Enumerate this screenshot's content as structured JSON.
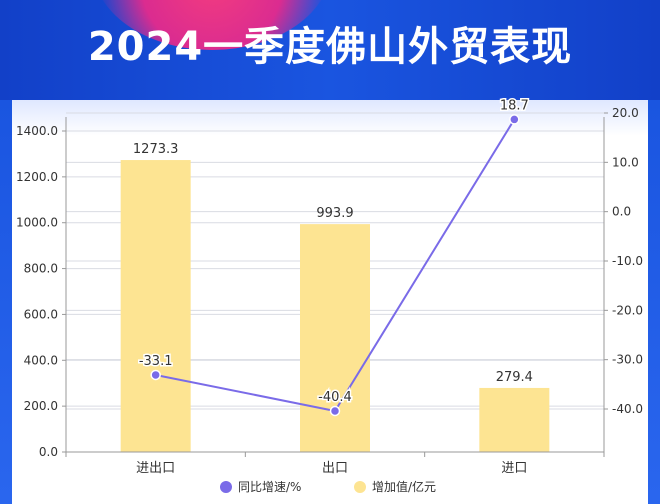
{
  "header": {
    "title": "2024一季度佛山外贸表现"
  },
  "colors": {
    "banner": "#1a55e0",
    "bar": "#fde492",
    "line": "#7a6be8",
    "grid": "#d9dbe3",
    "text": "#333333"
  },
  "chart_data": {
    "type": "bar+line",
    "categories": [
      "进出口",
      "出口",
      "进口"
    ],
    "series": [
      {
        "name": "增加值/亿元",
        "type": "bar",
        "axis": "left",
        "values": [
          1273.3,
          993.9,
          279.4
        ],
        "labels": [
          "1273.3",
          "993.9",
          "279.4"
        ]
      },
      {
        "name": "同比增速/%",
        "type": "line",
        "axis": "right",
        "values": [
          -33.1,
          -40.4,
          18.7
        ],
        "labels": [
          "-33.1",
          "-40.4",
          "18.7"
        ]
      }
    ],
    "y_left": {
      "range": [
        0,
        1400
      ],
      "ticks": [
        "0.0",
        "200.0",
        "400.0",
        "600.0",
        "800.0",
        "1000.0",
        "1200.0",
        "1400.0"
      ]
    },
    "y_right": {
      "range": [
        -40,
        20
      ],
      "ticks": [
        "-40.0",
        "-30.0",
        "-20.0",
        "-10.0",
        "0.0",
        "10.0",
        "20.0"
      ]
    },
    "grid": true,
    "legend_position": "bottom-center"
  }
}
